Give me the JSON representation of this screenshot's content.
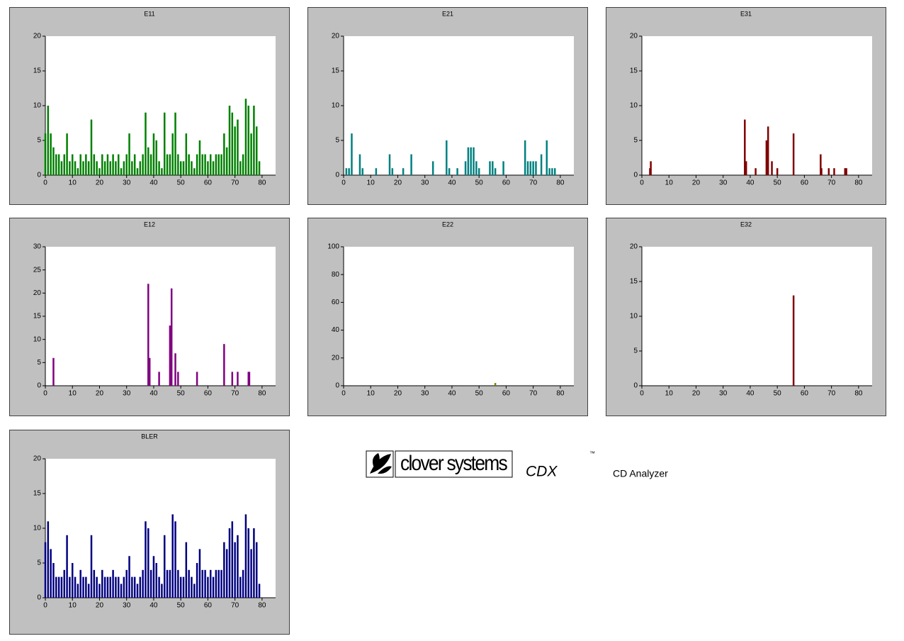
{
  "chart_data": [
    {
      "type": "bar",
      "title": "E11",
      "color": "#008000",
      "x": [
        0,
        1,
        2,
        3,
        4,
        5,
        6,
        7,
        8,
        9,
        10,
        11,
        12,
        13,
        14,
        15,
        16,
        17,
        18,
        19,
        20,
        21,
        22,
        23,
        24,
        25,
        26,
        27,
        28,
        29,
        30,
        31,
        32,
        33,
        34,
        35,
        36,
        37,
        38,
        39,
        40,
        41,
        42,
        43,
        44,
        45,
        46,
        47,
        48,
        49,
        50,
        51,
        52,
        53,
        54,
        55,
        56,
        57,
        58,
        59,
        60,
        61,
        62,
        63,
        64,
        65,
        66,
        67,
        68,
        69,
        70,
        71,
        72,
        73,
        74,
        75,
        76,
        77,
        78,
        79
      ],
      "values": [
        6,
        10,
        6,
        4,
        3,
        3,
        2,
        3,
        6,
        2,
        3,
        2,
        1,
        3,
        2,
        3,
        2,
        8,
        3,
        2,
        1,
        3,
        2,
        3,
        2,
        3,
        2,
        3,
        1,
        2,
        3,
        6,
        2,
        3,
        1,
        2,
        3,
        9,
        4,
        3,
        6,
        5,
        2,
        1,
        9,
        3,
        3,
        6,
        9,
        3,
        2,
        2,
        6,
        3,
        2,
        1,
        3,
        5,
        3,
        3,
        2,
        3,
        2,
        3,
        3,
        3,
        6,
        4,
        10,
        9,
        7,
        8,
        2,
        3,
        11,
        10,
        6,
        10,
        7,
        2
      ],
      "xlim": [
        0,
        85
      ],
      "ylim": [
        0,
        20
      ],
      "xticks": [
        0,
        10,
        20,
        30,
        40,
        50,
        60,
        70,
        80
      ],
      "yticks": [
        0,
        5,
        10,
        15,
        20
      ]
    },
    {
      "type": "bar",
      "title": "E21",
      "color": "#008080",
      "x": [
        1,
        2,
        3,
        6,
        7,
        12,
        17,
        18,
        22,
        25,
        33,
        38,
        39,
        42,
        45,
        46,
        47,
        48,
        49,
        50,
        54,
        55,
        56,
        59,
        67,
        68,
        69,
        70,
        71,
        73,
        75,
        76,
        77,
        78
      ],
      "values": [
        1,
        1,
        6,
        3,
        1,
        1,
        3,
        1,
        1,
        3,
        2,
        5,
        1,
        1,
        2,
        4,
        4,
        4,
        2,
        1,
        2,
        2,
        1,
        2,
        5,
        2,
        2,
        2,
        2,
        3,
        5,
        1,
        1,
        1
      ],
      "xlim": [
        0,
        85
      ],
      "ylim": [
        0,
        20
      ],
      "xticks": [
        0,
        10,
        20,
        30,
        40,
        50,
        60,
        70,
        80
      ],
      "yticks": [
        0,
        5,
        10,
        15,
        20
      ]
    },
    {
      "type": "bar",
      "title": "E31",
      "color": "#800000",
      "x": [
        3,
        3.3,
        38,
        38.5,
        42,
        46,
        46.3,
        46.6,
        48,
        50,
        56,
        66,
        66.3,
        69,
        71,
        75,
        75.5
      ],
      "values": [
        1,
        2,
        8,
        2,
        1,
        5,
        1,
        7,
        2,
        1,
        6,
        3,
        1,
        1,
        1,
        1,
        1
      ],
      "xlim": [
        0,
        85
      ],
      "ylim": [
        0,
        20
      ],
      "xticks": [
        0,
        10,
        20,
        30,
        40,
        50,
        60,
        70,
        80
      ],
      "yticks": [
        0,
        5,
        10,
        15,
        20
      ]
    },
    {
      "type": "bar",
      "title": "E12",
      "color": "#800080",
      "x": [
        3,
        38,
        38.5,
        42,
        46,
        46.3,
        46.6,
        48,
        49,
        56,
        66,
        69,
        71,
        75,
        75.3
      ],
      "values": [
        6,
        22,
        6,
        3,
        13,
        3,
        21,
        7,
        3,
        3,
        9,
        3,
        3,
        3,
        3
      ],
      "xlim": [
        0,
        85
      ],
      "ylim": [
        0,
        30
      ],
      "xticks": [
        0,
        10,
        20,
        30,
        40,
        50,
        60,
        70,
        80
      ],
      "yticks": [
        0,
        5,
        10,
        15,
        20,
        25,
        30
      ]
    },
    {
      "type": "bar",
      "title": "E22",
      "color": "#808000",
      "x": [
        56
      ],
      "values": [
        2
      ],
      "xlim": [
        0,
        85
      ],
      "ylim": [
        0,
        100
      ],
      "xticks": [
        0,
        10,
        20,
        30,
        40,
        50,
        60,
        70,
        80
      ],
      "yticks": [
        0,
        20,
        40,
        60,
        80,
        100
      ]
    },
    {
      "type": "bar",
      "title": "E32",
      "color": "#800000",
      "x": [
        56
      ],
      "values": [
        13
      ],
      "xlim": [
        0,
        85
      ],
      "ylim": [
        0,
        20
      ],
      "xticks": [
        0,
        10,
        20,
        30,
        40,
        50,
        60,
        70,
        80
      ],
      "yticks": [
        0,
        5,
        10,
        15,
        20
      ]
    },
    {
      "type": "bar",
      "title": "BLER",
      "color": "#000080",
      "x": [
        0,
        1,
        2,
        3,
        4,
        5,
        6,
        7,
        8,
        9,
        10,
        11,
        12,
        13,
        14,
        15,
        16,
        17,
        18,
        19,
        20,
        21,
        22,
        23,
        24,
        25,
        26,
        27,
        28,
        29,
        30,
        31,
        32,
        33,
        34,
        35,
        36,
        37,
        38,
        39,
        40,
        41,
        42,
        43,
        44,
        45,
        46,
        47,
        48,
        49,
        50,
        51,
        52,
        53,
        54,
        55,
        56,
        57,
        58,
        59,
        60,
        61,
        62,
        63,
        64,
        65,
        66,
        67,
        68,
        69,
        70,
        71,
        72,
        73,
        74,
        75,
        76,
        77,
        78,
        79
      ],
      "values": [
        8,
        11,
        7,
        5,
        3,
        3,
        3,
        4,
        9,
        3,
        5,
        3,
        2,
        4,
        3,
        3,
        2,
        9,
        4,
        3,
        2,
        4,
        3,
        3,
        3,
        4,
        3,
        3,
        2,
        3,
        4,
        6,
        3,
        3,
        2,
        3,
        4,
        11,
        10,
        4,
        6,
        5,
        3,
        2,
        9,
        4,
        4,
        12,
        11,
        4,
        3,
        3,
        8,
        4,
        3,
        2,
        5,
        7,
        4,
        4,
        3,
        4,
        3,
        4,
        4,
        4,
        8,
        7,
        10,
        11,
        8,
        9,
        3,
        4,
        12,
        10,
        7,
        10,
        8,
        2
      ],
      "xlim": [
        0,
        85
      ],
      "ylim": [
        0,
        20
      ],
      "xticks": [
        0,
        10,
        20,
        30,
        40,
        50,
        60,
        70,
        80
      ],
      "yticks": [
        0,
        5,
        10,
        15,
        20
      ]
    }
  ],
  "logo": {
    "brand": "clover systems",
    "product": "CDX",
    "trademark": "™",
    "tagline": "CD Analyzer"
  }
}
